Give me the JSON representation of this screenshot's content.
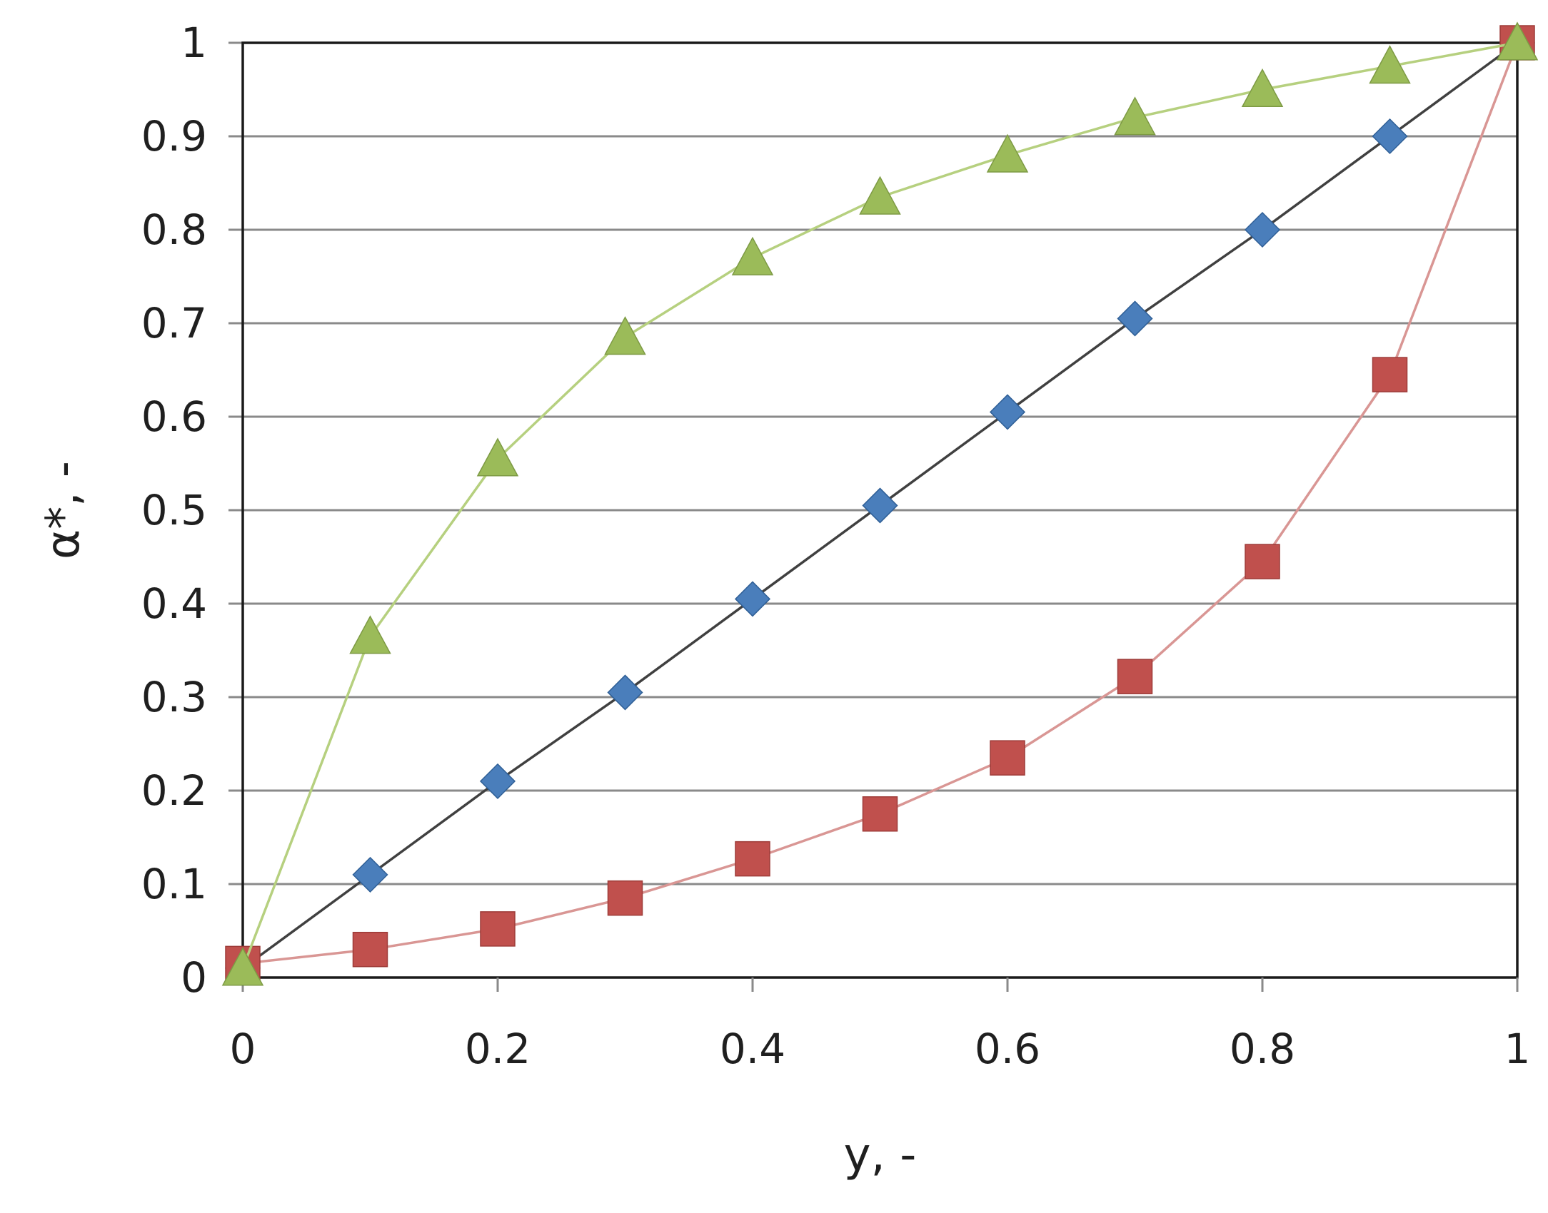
{
  "chart_data": {
    "type": "line",
    "title": "",
    "xlabel": "y, -",
    "ylabel": "α*, -",
    "xlim": [
      0,
      1
    ],
    "ylim": [
      0,
      1
    ],
    "grid": "horizontal",
    "x_ticks": [
      "0",
      "0.2",
      "0.4",
      "0.6",
      "0.8",
      "1"
    ],
    "y_ticks": [
      "0",
      "0.1",
      "0.2",
      "0.3",
      "0.4",
      "0.5",
      "0.6",
      "0.7",
      "0.8",
      "0.9",
      "1"
    ],
    "x": [
      0,
      0.1,
      0.2,
      0.3,
      0.4,
      0.5,
      0.6,
      0.7,
      0.8,
      0.9,
      1
    ],
    "series": [
      {
        "marker": "diamond",
        "color": "#4a7ebb",
        "line_color": "#404040",
        "values": [
          0.01,
          0.11,
          0.21,
          0.305,
          0.405,
          0.505,
          0.605,
          0.705,
          0.8,
          0.9,
          1.0
        ]
      },
      {
        "marker": "square",
        "color": "#c0504d",
        "line_color": "#d99694",
        "values": [
          0.015,
          0.03,
          0.052,
          0.085,
          0.127,
          0.175,
          0.235,
          0.322,
          0.445,
          0.645,
          1.0
        ]
      },
      {
        "marker": "triangle",
        "color": "#9bbb59",
        "line_color": "#b6d07f",
        "values": [
          0.01,
          0.365,
          0.555,
          0.685,
          0.77,
          0.835,
          0.88,
          0.92,
          0.95,
          0.975,
          1.0
        ]
      }
    ]
  }
}
